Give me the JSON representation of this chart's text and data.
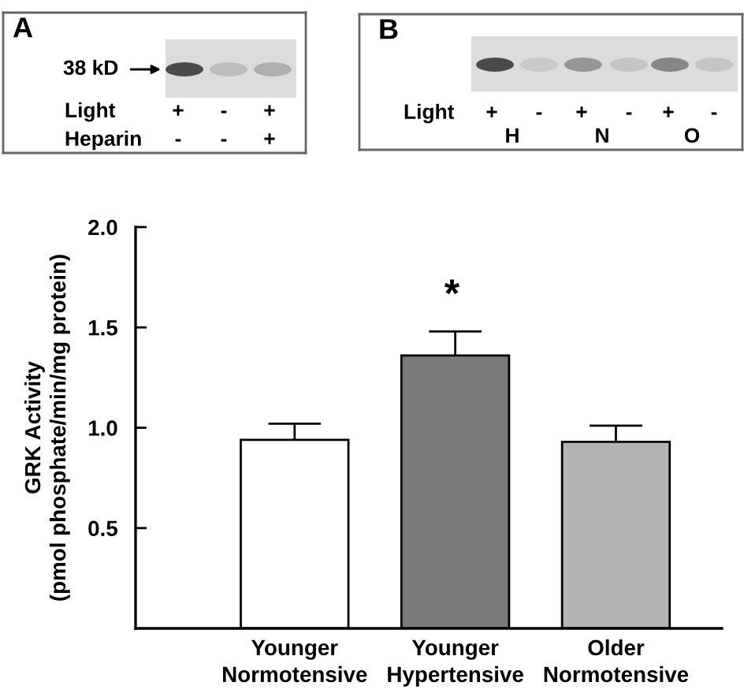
{
  "chart_data": [
    {
      "type": "other",
      "title": "A",
      "annotations": [
        "38 kD",
        "Light",
        "Heparin",
        "+",
        "-",
        "+",
        "-",
        "-",
        "+"
      ]
    },
    {
      "type": "other",
      "title": "B",
      "annotations": [
        "Light",
        "+",
        "-",
        "+",
        "-",
        "+",
        "-",
        "H",
        "N",
        "O"
      ]
    },
    {
      "type": "bar",
      "categories": [
        "Younger\nNormotensive",
        "Younger\nHypertensive",
        "Older\nNormotensive"
      ],
      "values": [
        0.94,
        1.36,
        0.93
      ],
      "errors": [
        0.08,
        0.12,
        0.08
      ],
      "colors": [
        "#ffffff",
        "#7a7a7a",
        "#b4b4b4"
      ],
      "ylabel": "GRK Activity\n(pmol phosphate/min/mg protein)",
      "ylim": [
        0,
        2.0
      ],
      "yticks": [
        {
          "value": 0.5,
          "label": "0.5"
        },
        {
          "value": 1.0,
          "label": "1.0"
        },
        {
          "value": 1.5,
          "label": "1.5"
        },
        {
          "value": 2.0,
          "label": "2.0"
        }
      ],
      "annotations": [
        "*"
      ]
    }
  ]
}
